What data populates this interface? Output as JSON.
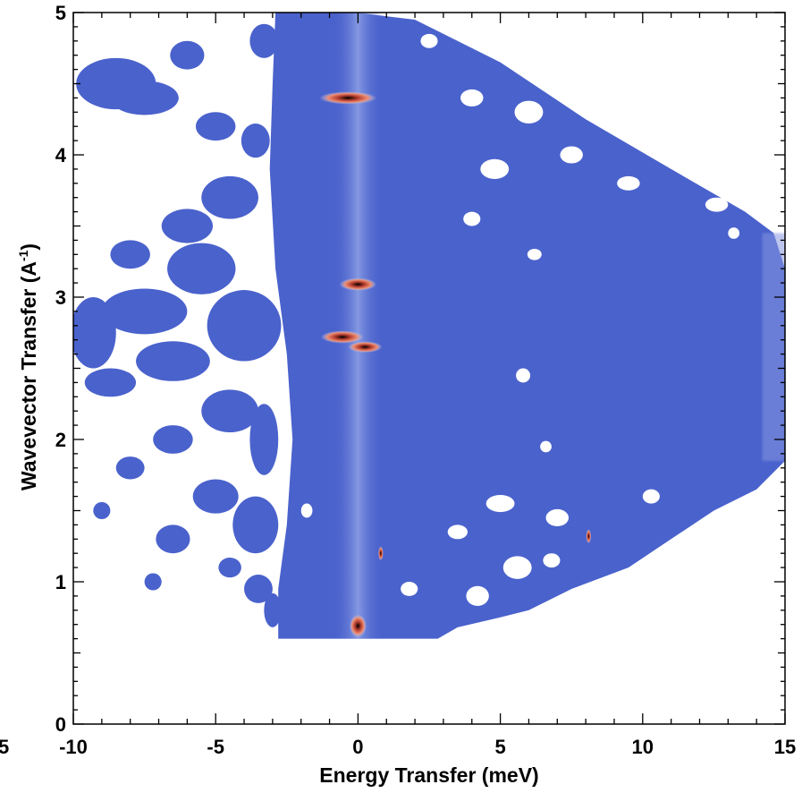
{
  "chart_data": {
    "type": "heatmap",
    "xlabel": "Energy Transfer (meV)",
    "ylabel_main": "Wavevector Transfer (A",
    "ylabel_sup": "-1",
    "ylabel_close": ")",
    "xlim": [
      -10,
      15
    ],
    "ylim": [
      0,
      5
    ],
    "x_ticks": [
      -10,
      -5,
      0,
      5,
      10,
      15
    ],
    "x_tick_labels": [
      "-10",
      "-5",
      "0",
      "5",
      "10",
      "15"
    ],
    "y_ticks": [
      0,
      1,
      2,
      3,
      4,
      5
    ],
    "y_tick_labels": [
      "0",
      "1",
      "2",
      "3",
      "4",
      "5"
    ],
    "edge_label": "5",
    "colors": {
      "background_intensity": "#4a62cc",
      "elastic_line": "#7f94e0",
      "peak_mid": "#e06a55",
      "peak_core": "#000000",
      "no_data": "#ffffff"
    },
    "coverage_boundary": [
      [
        -2.9,
        5.0
      ],
      [
        -0.1,
        5.0
      ],
      [
        2.0,
        4.95
      ],
      [
        5.0,
        4.65
      ],
      [
        8.0,
        4.25
      ],
      [
        11.0,
        3.9
      ],
      [
        13.6,
        3.6
      ],
      [
        14.6,
        3.45
      ],
      [
        15.0,
        3.2
      ],
      [
        15.0,
        1.85
      ],
      [
        14.0,
        1.65
      ],
      [
        12.5,
        1.5
      ],
      [
        11.0,
        1.3
      ],
      [
        9.5,
        1.1
      ],
      [
        7.5,
        0.95
      ],
      [
        6.0,
        0.8
      ],
      [
        5.0,
        0.75
      ],
      [
        3.5,
        0.68
      ],
      [
        2.8,
        0.6
      ],
      [
        -2.8,
        0.6
      ],
      [
        -2.8,
        0.95
      ],
      [
        -2.5,
        1.4
      ],
      [
        -2.3,
        2.0
      ],
      [
        -2.5,
        2.6
      ],
      [
        -2.9,
        3.2
      ],
      [
        -3.1,
        3.9
      ],
      [
        -3.0,
        4.5
      ]
    ],
    "elastic_line_center_x": 0.0,
    "elastic_line_halfwidth": 0.9,
    "bragg_peaks": [
      {
        "x": -0.35,
        "y": 4.4,
        "width": 2.0,
        "height": 0.09
      },
      {
        "x": 0.0,
        "y": 3.09,
        "width": 1.3,
        "height": 0.09
      },
      {
        "x": -0.55,
        "y": 2.72,
        "width": 1.5,
        "height": 0.09
      },
      {
        "x": 0.25,
        "y": 2.65,
        "width": 1.2,
        "height": 0.08
      },
      {
        "x": 0.0,
        "y": 0.69,
        "width": 0.6,
        "height": 0.16
      },
      {
        "x": 0.8,
        "y": 1.2,
        "width": 0.18,
        "height": 0.1
      },
      {
        "x": 8.1,
        "y": 1.32,
        "width": 0.18,
        "height": 0.1
      }
    ],
    "scattered_data_regions": [
      {
        "x": -7.5,
        "y": 4.4,
        "rx": 1.2,
        "ry": 0.12
      },
      {
        "x": -8.5,
        "y": 4.5,
        "rx": 1.4,
        "ry": 0.18
      },
      {
        "x": -6.0,
        "y": 4.7,
        "rx": 0.6,
        "ry": 0.1
      },
      {
        "x": -5.0,
        "y": 4.2,
        "rx": 0.7,
        "ry": 0.1
      },
      {
        "x": -4.5,
        "y": 3.7,
        "rx": 1.0,
        "ry": 0.15
      },
      {
        "x": -6.0,
        "y": 3.5,
        "rx": 0.9,
        "ry": 0.12
      },
      {
        "x": -8.0,
        "y": 3.3,
        "rx": 0.7,
        "ry": 0.1
      },
      {
        "x": -5.5,
        "y": 3.2,
        "rx": 1.2,
        "ry": 0.18
      },
      {
        "x": -7.5,
        "y": 2.9,
        "rx": 1.5,
        "ry": 0.16
      },
      {
        "x": -9.3,
        "y": 2.75,
        "rx": 0.8,
        "ry": 0.25
      },
      {
        "x": -4.0,
        "y": 2.8,
        "rx": 1.3,
        "ry": 0.25
      },
      {
        "x": -6.5,
        "y": 2.55,
        "rx": 1.3,
        "ry": 0.14
      },
      {
        "x": -8.7,
        "y": 2.4,
        "rx": 0.9,
        "ry": 0.1
      },
      {
        "x": -4.5,
        "y": 2.2,
        "rx": 1.0,
        "ry": 0.15
      },
      {
        "x": -6.5,
        "y": 2.0,
        "rx": 0.7,
        "ry": 0.1
      },
      {
        "x": -8.0,
        "y": 1.8,
        "rx": 0.5,
        "ry": 0.08
      },
      {
        "x": -5.0,
        "y": 1.6,
        "rx": 0.8,
        "ry": 0.12
      },
      {
        "x": -3.6,
        "y": 1.4,
        "rx": 0.8,
        "ry": 0.2
      },
      {
        "x": -6.5,
        "y": 1.3,
        "rx": 0.6,
        "ry": 0.1
      },
      {
        "x": -3.5,
        "y": 0.95,
        "rx": 0.5,
        "ry": 0.1
      },
      {
        "x": -4.5,
        "y": 1.1,
        "rx": 0.4,
        "ry": 0.07
      },
      {
        "x": -7.2,
        "y": 1.0,
        "rx": 0.3,
        "ry": 0.06
      },
      {
        "x": -9.0,
        "y": 1.5,
        "rx": 0.3,
        "ry": 0.06
      },
      {
        "x": -3.3,
        "y": 4.8,
        "rx": 0.5,
        "ry": 0.12
      },
      {
        "x": -3.6,
        "y": 4.1,
        "rx": 0.5,
        "ry": 0.12
      },
      {
        "x": -3.3,
        "y": 2.0,
        "rx": 0.5,
        "ry": 0.25
      },
      {
        "x": -3.0,
        "y": 0.8,
        "rx": 0.3,
        "ry": 0.12
      }
    ],
    "data_holes": [
      {
        "x": 4.0,
        "y": 4.4,
        "rx": 0.4,
        "ry": 0.06
      },
      {
        "x": 6.0,
        "y": 4.3,
        "rx": 0.5,
        "ry": 0.08
      },
      {
        "x": 4.8,
        "y": 3.9,
        "rx": 0.5,
        "ry": 0.07
      },
      {
        "x": 7.5,
        "y": 4.0,
        "rx": 0.4,
        "ry": 0.06
      },
      {
        "x": 9.5,
        "y": 3.8,
        "rx": 0.4,
        "ry": 0.05
      },
      {
        "x": 10.6,
        "y": 4.05,
        "rx": 0.3,
        "ry": 0.05
      },
      {
        "x": 12.6,
        "y": 3.65,
        "rx": 0.4,
        "ry": 0.05
      },
      {
        "x": 4.0,
        "y": 3.55,
        "rx": 0.3,
        "ry": 0.05
      },
      {
        "x": 6.2,
        "y": 3.3,
        "rx": 0.25,
        "ry": 0.04
      },
      {
        "x": 13.2,
        "y": 3.45,
        "rx": 0.2,
        "ry": 0.04
      },
      {
        "x": 5.8,
        "y": 2.45,
        "rx": 0.25,
        "ry": 0.05
      },
      {
        "x": 6.6,
        "y": 1.95,
        "rx": 0.2,
        "ry": 0.04
      },
      {
        "x": 5.0,
        "y": 1.55,
        "rx": 0.5,
        "ry": 0.06
      },
      {
        "x": 7.0,
        "y": 1.45,
        "rx": 0.4,
        "ry": 0.06
      },
      {
        "x": 3.5,
        "y": 1.35,
        "rx": 0.35,
        "ry": 0.05
      },
      {
        "x": 5.6,
        "y": 1.1,
        "rx": 0.5,
        "ry": 0.08
      },
      {
        "x": 4.2,
        "y": 0.9,
        "rx": 0.4,
        "ry": 0.07
      },
      {
        "x": 6.8,
        "y": 1.15,
        "rx": 0.3,
        "ry": 0.05
      },
      {
        "x": 10.3,
        "y": 1.6,
        "rx": 0.3,
        "ry": 0.05
      },
      {
        "x": 1.8,
        "y": 0.95,
        "rx": 0.3,
        "ry": 0.05
      },
      {
        "x": -1.8,
        "y": 1.5,
        "rx": 0.2,
        "ry": 0.05
      },
      {
        "x": 2.5,
        "y": 4.8,
        "rx": 0.3,
        "ry": 0.05
      }
    ]
  }
}
